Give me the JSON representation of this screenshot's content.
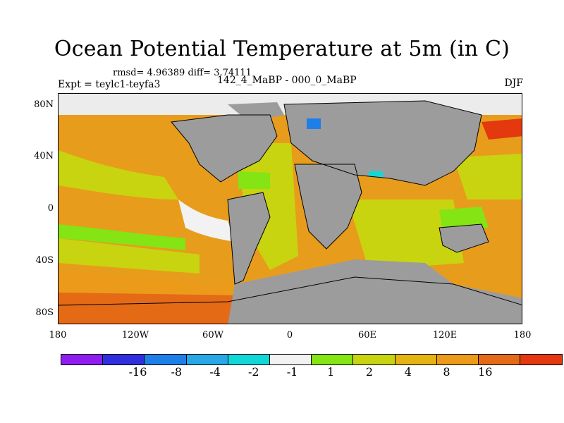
{
  "title": "Ocean Potential Temperature at 5m (in C)",
  "stats": "rmsd= 4.96389 diff= 3.74111",
  "expt_label": "Expt = teylc1-teyfa3",
  "subtitle": "142_4_MaBP - 000_0_MaBP",
  "season": "DJF",
  "lat_ticks": [
    "80N",
    "40N",
    "0",
    "40S",
    "80S"
  ],
  "lon_ticks": [
    "180",
    "120W",
    "60W",
    "0",
    "60E",
    "120E",
    "180"
  ],
  "colorbar": {
    "colors": [
      "#8f1df0",
      "#2f2fe0",
      "#1e7fe8",
      "#28a8e6",
      "#10d8d8",
      "#f2f2f2",
      "#84e414",
      "#c8d410",
      "#e6b412",
      "#ec9a1a",
      "#e46a16",
      "#e4380e"
    ],
    "labels": [
      "-16",
      "-8",
      "-4",
      "-2",
      "-1",
      "1",
      "2",
      "4",
      "8",
      "16"
    ]
  },
  "map_colors": {
    "land": "#9c9c9c",
    "background": "#e89c1c",
    "coastline": "#000000"
  }
}
